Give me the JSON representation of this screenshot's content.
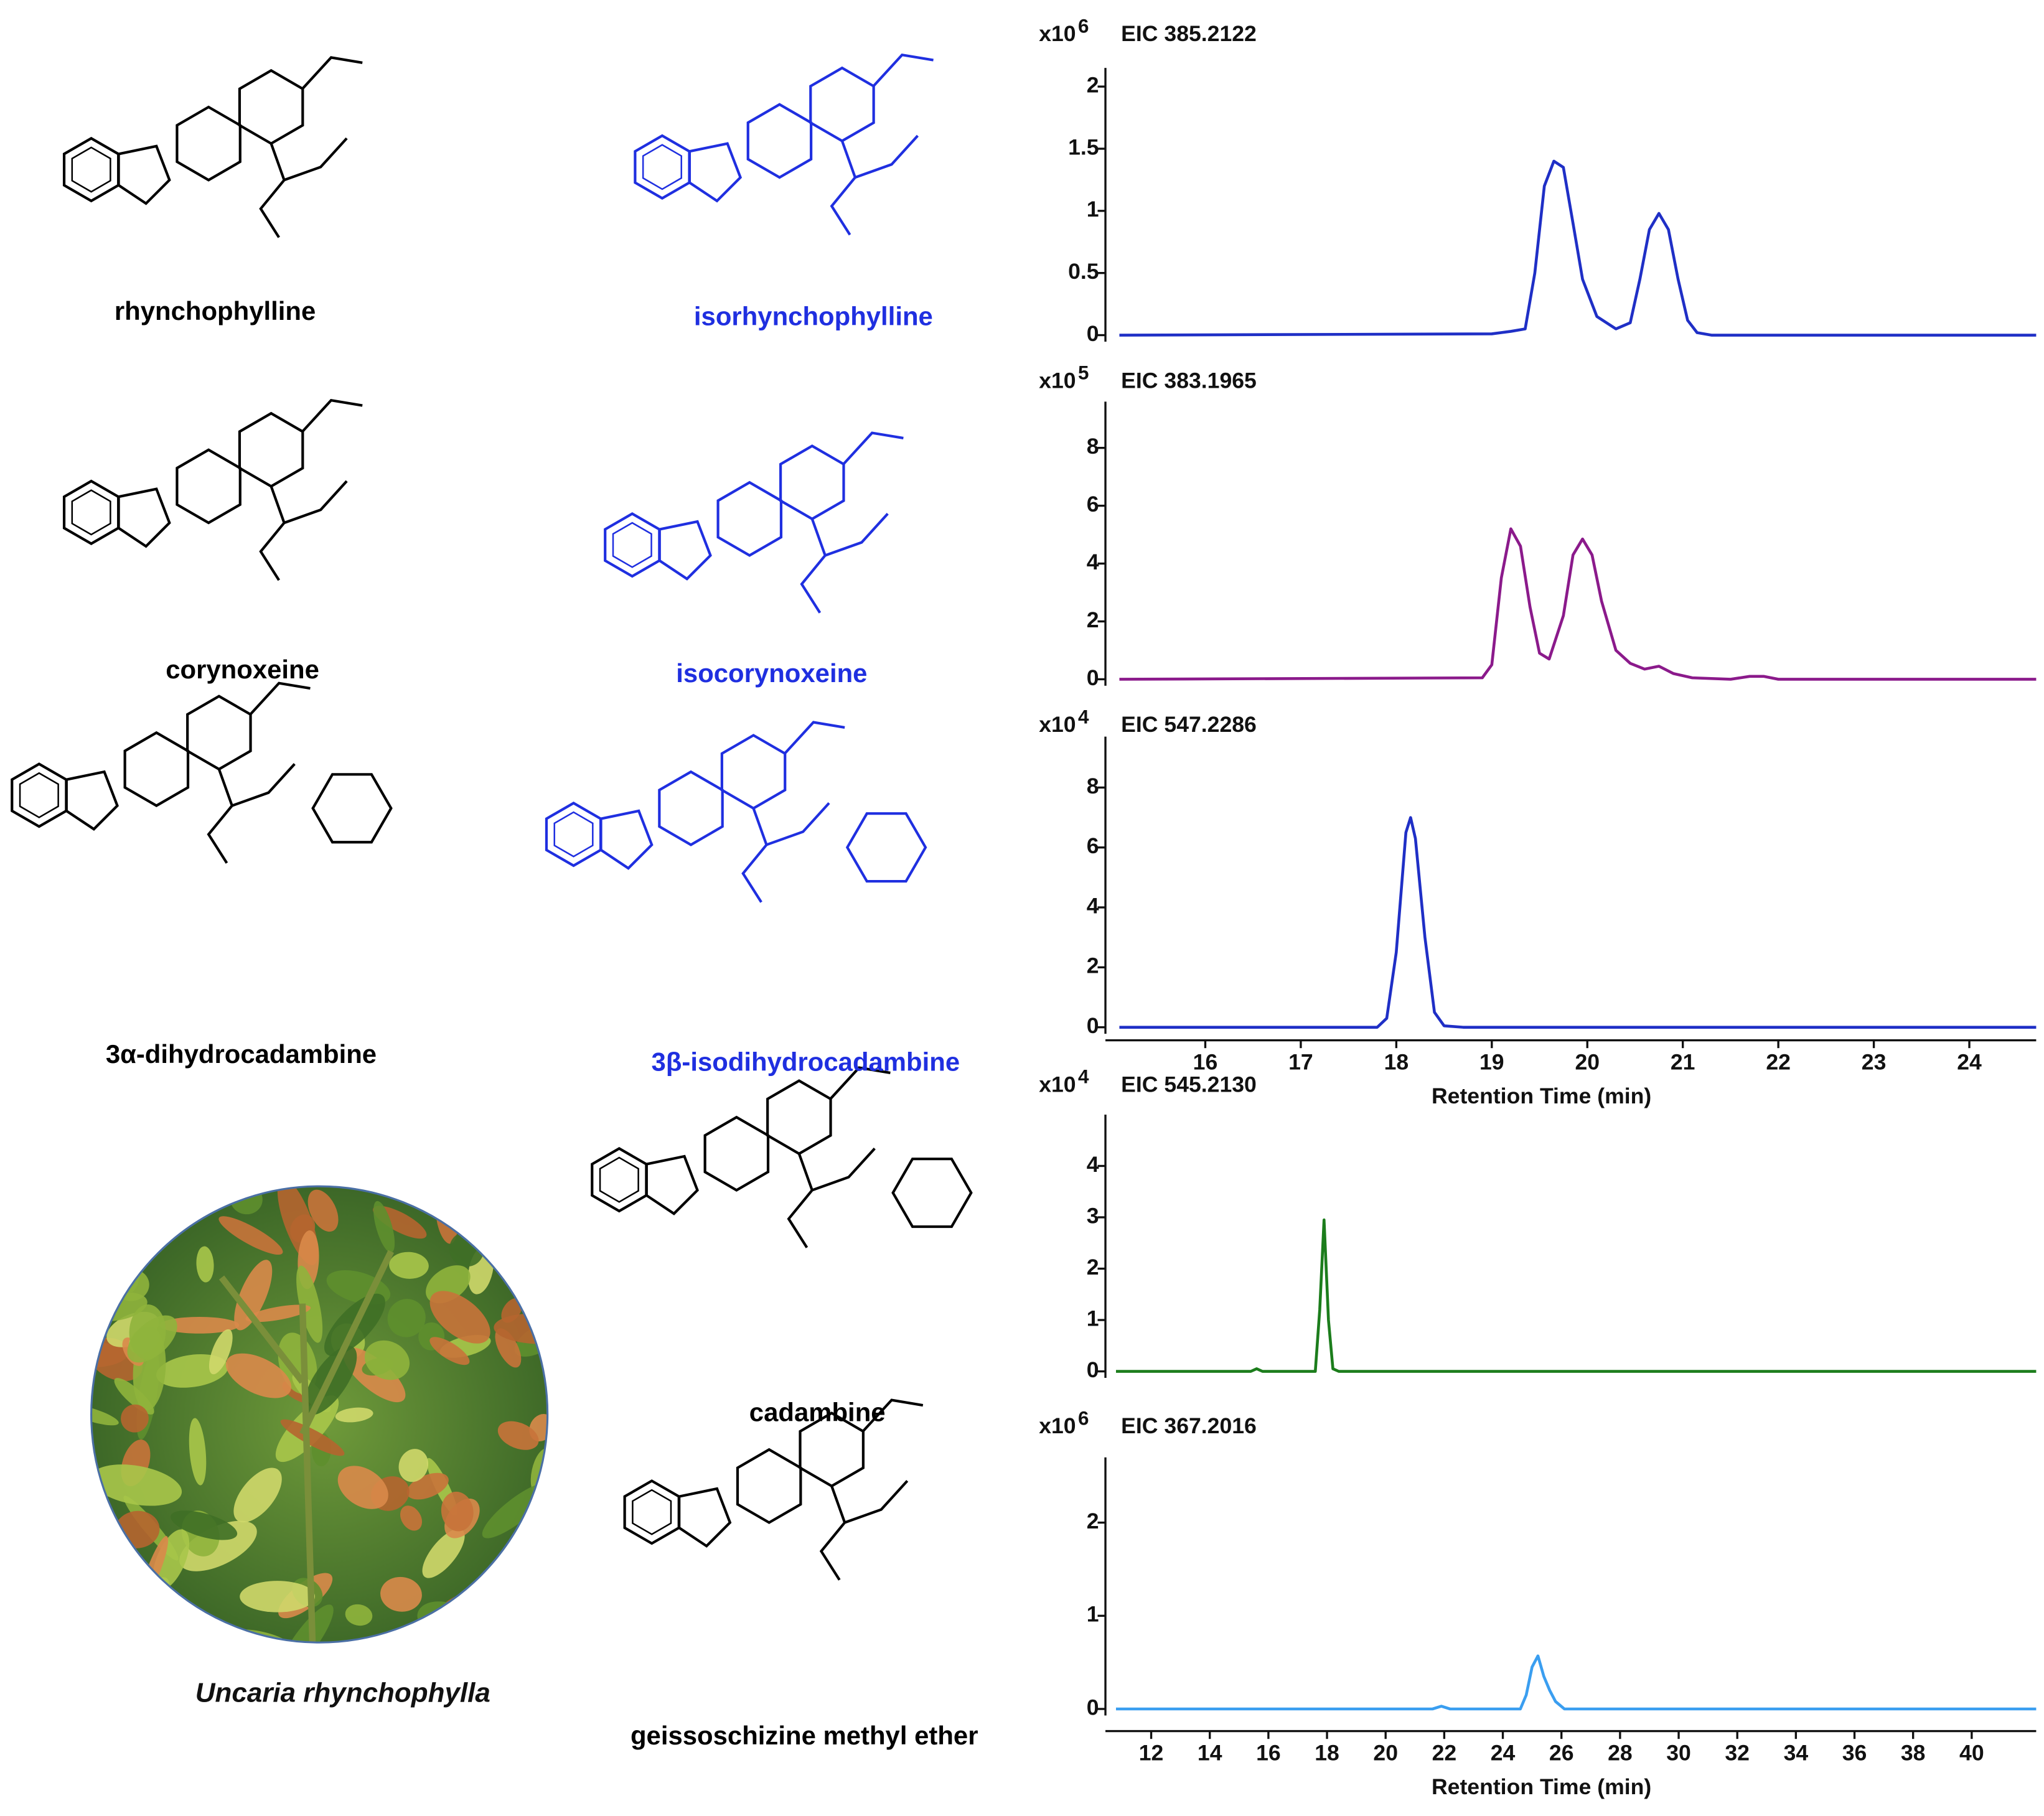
{
  "chart_data": [
    {
      "type": "line",
      "y_multiplier": "x10",
      "y_exponent": "6",
      "title": "EIC 385.2122",
      "color": "#1f2fc6",
      "x": [
        15.1,
        19.0,
        19.2,
        19.35,
        19.45,
        19.55,
        19.65,
        19.75,
        19.85,
        19.95,
        20.1,
        20.3,
        20.45,
        20.55,
        20.65,
        20.75,
        20.85,
        20.95,
        21.05,
        21.15,
        21.3,
        24.7
      ],
      "values": [
        0,
        0.01,
        0.03,
        0.05,
        0.5,
        1.2,
        1.4,
        1.35,
        0.9,
        0.45,
        0.15,
        0.05,
        0.1,
        0.45,
        0.85,
        0.98,
        0.85,
        0.45,
        0.12,
        0.02,
        0,
        0
      ],
      "xlim": [
        15.05,
        24.7
      ],
      "ylim": [
        0,
        2.15
      ],
      "yticks": [
        0,
        0.5,
        1,
        1.5,
        2
      ]
    },
    {
      "type": "line",
      "y_multiplier": "x10",
      "y_exponent": "5",
      "title": "EIC 383.1965",
      "color": "#8b1a8b",
      "x": [
        15.1,
        18.9,
        19.0,
        19.1,
        19.2,
        19.3,
        19.4,
        19.5,
        19.6,
        19.75,
        19.85,
        19.95,
        20.05,
        20.15,
        20.3,
        20.45,
        20.6,
        20.75,
        20.9,
        21.1,
        21.5,
        21.7,
        21.85,
        22.0,
        24.7
      ],
      "values": [
        0,
        0.05,
        0.5,
        3.5,
        5.2,
        4.6,
        2.5,
        0.9,
        0.7,
        2.2,
        4.3,
        4.85,
        4.3,
        2.7,
        1.0,
        0.55,
        0.35,
        0.45,
        0.2,
        0.05,
        0,
        0.1,
        0.1,
        0,
        0
      ],
      "xlim": [
        15.05,
        24.7
      ],
      "ylim": [
        0,
        9.6
      ],
      "yticks": [
        0,
        2,
        4,
        6,
        8
      ]
    },
    {
      "type": "line",
      "y_multiplier": "x10",
      "y_exponent": "4",
      "title": "EIC 547.2286",
      "color": "#1f2fc6",
      "x": [
        15.1,
        17.8,
        17.9,
        18.0,
        18.1,
        18.15,
        18.2,
        18.3,
        18.4,
        18.5,
        18.7,
        24.7
      ],
      "values": [
        0,
        0,
        0.3,
        2.5,
        6.5,
        7.0,
        6.3,
        3,
        0.5,
        0.05,
        0,
        0
      ],
      "xlim": [
        15.05,
        24.7
      ],
      "ylim": [
        0,
        9.7
      ],
      "yticks": [
        0,
        2,
        4,
        6,
        8
      ],
      "xticks": [
        16,
        17,
        18,
        19,
        20,
        21,
        22,
        23,
        24
      ],
      "xlabel": "Retention  Time (min)"
    },
    {
      "type": "line",
      "y_multiplier": "x10",
      "y_exponent": "4",
      "title": "EIC 545.2130",
      "color": "#1c7d1c",
      "x": [
        10.8,
        15.4,
        15.6,
        15.8,
        17.6,
        17.75,
        17.9,
        18.05,
        18.2,
        18.4,
        42.2
      ],
      "values": [
        0,
        0,
        0.05,
        0,
        0,
        1.2,
        2.95,
        1.0,
        0.05,
        0,
        0
      ],
      "xlim": [
        10.75,
        42.2
      ],
      "ylim": [
        0,
        5.0
      ],
      "yticks": [
        0,
        1,
        2,
        3,
        4
      ]
    },
    {
      "type": "line",
      "y_multiplier": "x10",
      "y_exponent": "6",
      "title": "EIC 367.2016",
      "color": "#3a9ef0",
      "x": [
        10.8,
        21.6,
        21.9,
        22.2,
        24.6,
        24.8,
        25.0,
        25.2,
        25.4,
        25.6,
        25.8,
        26.1,
        42.2
      ],
      "values": [
        0,
        0,
        0.03,
        0,
        0,
        0.15,
        0.45,
        0.57,
        0.35,
        0.2,
        0.08,
        0,
        0
      ],
      "xlim": [
        10.75,
        42.2
      ],
      "ylim": [
        0,
        2.7
      ],
      "yticks": [
        0,
        1,
        2
      ],
      "xticks": [
        12,
        14,
        16,
        18,
        20,
        22,
        24,
        26,
        28,
        30,
        32,
        34,
        36,
        38,
        40
      ],
      "xlabel": "Retention Time (min)"
    }
  ],
  "structures": [
    {
      "name": "rhynchophylline",
      "color": "#000000"
    },
    {
      "name": "isorhynchophylline",
      "color": "#1f2fe0"
    },
    {
      "name": "corynoxeine",
      "color": "#000000"
    },
    {
      "name": "isocorynoxeine",
      "color": "#1f2fe0"
    },
    {
      "name": "3α-dihydrocadambine",
      "color": "#000000"
    },
    {
      "name": "3β-isodihydrocadambine",
      "color": "#1f2fe0"
    },
    {
      "name": "cadambine",
      "color": "#000000"
    },
    {
      "name": "geissoschizine methyl ether",
      "color": "#000000"
    }
  ],
  "photo_caption": "Uncaria rhynchophylla"
}
